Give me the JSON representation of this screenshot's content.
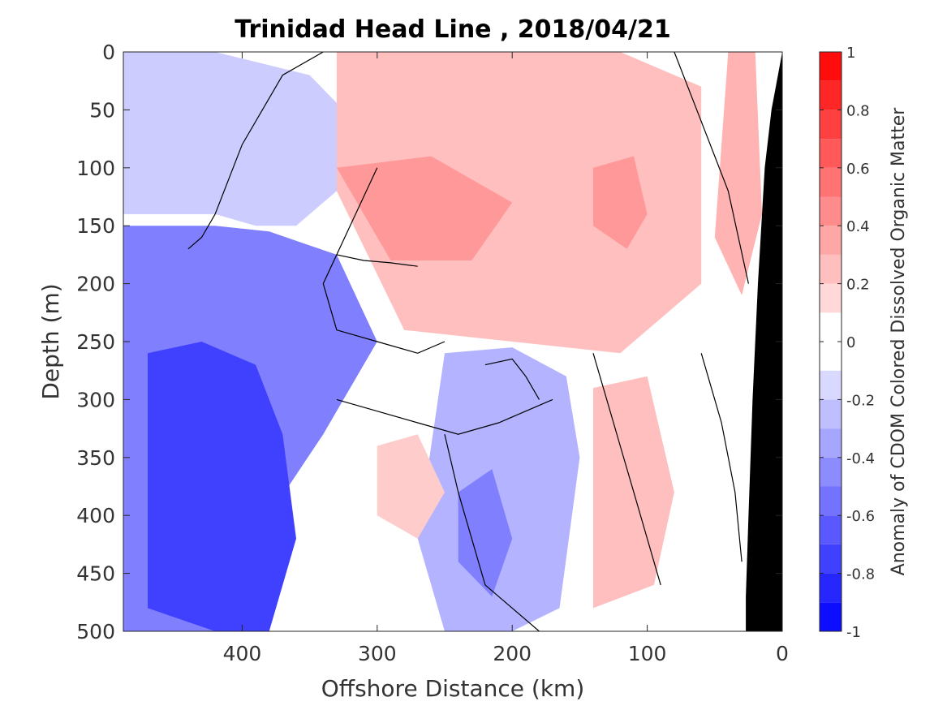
{
  "chart_data": {
    "type": "heatmap",
    "title": "Trinidad Head Line , 2018/04/21",
    "xlabel": "Offshore Distance (km)",
    "ylabel": "Depth (m)",
    "colorbar_label": "Anomaly of CDOM Colored Dissolved Organic Matter",
    "xlim": [
      488,
      0
    ],
    "ylim": [
      0,
      500
    ],
    "x_reversed": true,
    "y_reversed": true,
    "xticks": [
      {
        "value": 400,
        "label": "400"
      },
      {
        "value": 300,
        "label": "300"
      },
      {
        "value": 200,
        "label": "200"
      },
      {
        "value": 100,
        "label": "100"
      },
      {
        "value": 0,
        "label": "0"
      }
    ],
    "yticks": [
      {
        "value": 0,
        "label": "0"
      },
      {
        "value": 50,
        "label": "50"
      },
      {
        "value": 100,
        "label": "100"
      },
      {
        "value": 150,
        "label": "150"
      },
      {
        "value": 200,
        "label": "200"
      },
      {
        "value": 250,
        "label": "250"
      },
      {
        "value": 300,
        "label": "300"
      },
      {
        "value": 350,
        "label": "350"
      },
      {
        "value": 400,
        "label": "400"
      },
      {
        "value": 450,
        "label": "450"
      },
      {
        "value": 500,
        "label": "500"
      }
    ],
    "colorbar": {
      "range": [
        -1,
        1
      ],
      "levels": 20,
      "ticks": [
        {
          "value": 1,
          "label": "1"
        },
        {
          "value": 0.8,
          "label": "0.8"
        },
        {
          "value": 0.6,
          "label": "0.6"
        },
        {
          "value": 0.4,
          "label": "0.4"
        },
        {
          "value": 0.2,
          "label": "0.2"
        },
        {
          "value": 0,
          "label": "0"
        },
        {
          "value": -0.2,
          "label": "-0.2"
        },
        {
          "value": -0.4,
          "label": "-0.4"
        },
        {
          "value": -0.6,
          "label": "-0.6"
        },
        {
          "value": -0.8,
          "label": "-0.8"
        },
        {
          "value": -1,
          "label": "-1"
        }
      ],
      "colormap": "blue-white-red",
      "color_min": "#0000ff",
      "color_mid": "#ffffff",
      "color_max": "#ff0000"
    },
    "contour_level": 0,
    "contour_color": "#000000",
    "bathymetry_color": "#000000",
    "bathymetry": {
      "x": [
        0,
        8,
        13,
        18,
        22,
        25,
        27,
        27,
        0
      ],
      "depth": [
        0,
        50,
        100,
        200,
        300,
        400,
        470,
        500,
        500
      ]
    },
    "regions": [
      {
        "x": [
          488,
          420,
          350,
          300,
          330,
          360,
          390,
          420,
          488
        ],
        "depth": [
          0,
          0,
          20,
          80,
          120,
          150,
          150,
          140,
          140
        ],
        "value": -0.2
      },
      {
        "x": [
          488,
          420,
          380,
          330,
          300,
          340,
          380,
          420,
          488
        ],
        "depth": [
          150,
          150,
          155,
          175,
          250,
          330,
          400,
          500,
          500
        ],
        "value": -0.5
      },
      {
        "x": [
          470,
          430,
          390,
          370,
          360,
          380,
          420,
          470
        ],
        "depth": [
          260,
          250,
          270,
          330,
          420,
          500,
          500,
          480
        ],
        "value": -0.75
      },
      {
        "x": [
          250,
          200,
          160,
          150,
          165,
          200,
          250,
          270
        ],
        "depth": [
          260,
          255,
          280,
          350,
          480,
          500,
          500,
          420
        ],
        "value": -0.3
      },
      {
        "x": [
          240,
          215,
          200,
          215,
          240
        ],
        "depth": [
          380,
          360,
          420,
          470,
          440
        ],
        "value": -0.5
      },
      {
        "x": [
          330,
          200,
          120,
          60,
          60,
          120,
          200,
          280,
          330
        ],
        "depth": [
          0,
          0,
          0,
          30,
          200,
          260,
          250,
          240,
          120
        ],
        "value": 0.25
      },
      {
        "x": [
          330,
          260,
          200,
          230,
          290
        ],
        "depth": [
          100,
          90,
          130,
          180,
          180
        ],
        "value": 0.4
      },
      {
        "x": [
          140,
          110,
          100,
          115,
          140
        ],
        "depth": [
          100,
          90,
          140,
          170,
          150
        ],
        "value": 0.4
      },
      {
        "x": [
          140,
          100,
          80,
          95,
          140
        ],
        "depth": [
          290,
          280,
          380,
          460,
          480
        ],
        "value": 0.25
      },
      {
        "x": [
          300,
          270,
          250,
          270,
          300
        ],
        "depth": [
          340,
          330,
          380,
          420,
          400
        ],
        "value": 0.2
      },
      {
        "x": [
          40,
          20,
          15,
          30,
          50
        ],
        "depth": [
          0,
          0,
          140,
          210,
          160
        ],
        "value": 0.3
      }
    ],
    "contours": [
      {
        "x": [
          340,
          370,
          400,
          420,
          430,
          440
        ],
        "depth": [
          0,
          20,
          80,
          140,
          160,
          170
        ]
      },
      {
        "x": [
          300,
          320,
          340,
          330,
          300,
          270,
          250
        ],
        "depth": [
          100,
          150,
          200,
          240,
          250,
          260,
          250
        ]
      },
      {
        "x": [
          330,
          300,
          270,
          240,
          210,
          190,
          170
        ],
        "depth": [
          300,
          310,
          320,
          330,
          320,
          310,
          300
        ]
      },
      {
        "x": [
          250,
          240,
          230,
          220,
          200,
          180
        ],
        "depth": [
          330,
          380,
          420,
          460,
          480,
          500
        ]
      },
      {
        "x": [
          140,
          130,
          120,
          110,
          100,
          90
        ],
        "depth": [
          260,
          300,
          340,
          380,
          420,
          460
        ]
      },
      {
        "x": [
          80,
          60,
          40,
          25
        ],
        "depth": [
          0,
          60,
          120,
          200
        ]
      },
      {
        "x": [
          330,
          310,
          290,
          270
        ],
        "depth": [
          175,
          180,
          182,
          185
        ]
      },
      {
        "x": [
          60,
          45,
          35,
          30
        ],
        "depth": [
          260,
          320,
          380,
          440
        ]
      },
      {
        "x": [
          220,
          200,
          190,
          180
        ],
        "depth": [
          270,
          265,
          280,
          300
        ]
      }
    ]
  }
}
